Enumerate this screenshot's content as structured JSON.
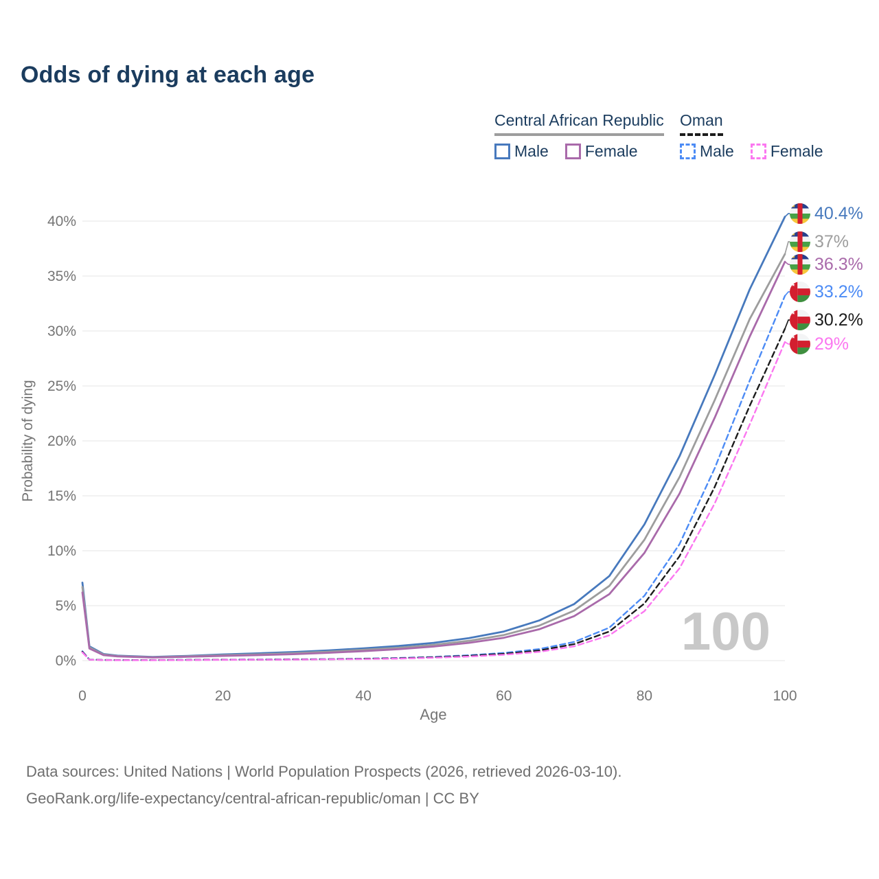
{
  "title": "Odds of dying at each age",
  "legend": {
    "groups": [
      {
        "name": "Central African Republic",
        "line_style": "solid",
        "line_color": "#9d9d9d",
        "items": [
          {
            "label": "Male",
            "color": "#4779bd",
            "style": "solid"
          },
          {
            "label": "Female",
            "color": "#a96aaa",
            "style": "solid"
          }
        ]
      },
      {
        "name": "Oman",
        "line_style": "dashed",
        "line_color": "#1c1c1c",
        "items": [
          {
            "label": "Male",
            "color": "#4c8bf5",
            "style": "dashed"
          },
          {
            "label": "Female",
            "color": "#fb77f0",
            "style": "dashed"
          }
        ]
      }
    ]
  },
  "watermark": "100",
  "footer": {
    "line1": "Data sources: United Nations | World Population Prospects (2026, retrieved 2026-03-10).",
    "line2": "GeoRank.org/life-expectancy/central-african-republic/oman | CC BY"
  },
  "chart_data": {
    "type": "line",
    "title": "Odds of dying at each age",
    "xlabel": "Age",
    "ylabel": "Probability of dying",
    "xlim": [
      0,
      100
    ],
    "ylim": [
      0,
      40.5
    ],
    "grid": true,
    "legend_position": "top-right",
    "x_ticks": [
      {
        "value": 0,
        "label": "0"
      },
      {
        "value": 20,
        "label": "20"
      },
      {
        "value": 40,
        "label": "40"
      },
      {
        "value": 60,
        "label": "60"
      },
      {
        "value": 80,
        "label": "80"
      },
      {
        "value": 100,
        "label": "100"
      }
    ],
    "y_ticks": [
      {
        "value": 0,
        "label": "0%"
      },
      {
        "value": 5,
        "label": "5%"
      },
      {
        "value": 10,
        "label": "10%"
      },
      {
        "value": 15,
        "label": "15%"
      },
      {
        "value": 20,
        "label": "20%"
      },
      {
        "value": 25,
        "label": "25%"
      },
      {
        "value": 30,
        "label": "30%"
      },
      {
        "value": 35,
        "label": "35%"
      },
      {
        "value": 40,
        "label": "40%"
      }
    ],
    "x": [
      0,
      1,
      3,
      5,
      10,
      15,
      20,
      25,
      30,
      35,
      40,
      45,
      50,
      55,
      60,
      65,
      70,
      75,
      80,
      85,
      90,
      95,
      100
    ],
    "series": [
      {
        "name": "Central African Republic Male",
        "country": "Central African Republic",
        "sex": "male",
        "line": "solid",
        "color": "#4779bd",
        "end_label": "40.4%",
        "end_value": 40.4,
        "flag": "central-african-republic",
        "values": [
          7.1,
          1.3,
          0.6,
          0.45,
          0.33,
          0.43,
          0.56,
          0.66,
          0.78,
          0.93,
          1.12,
          1.33,
          1.62,
          2.05,
          2.65,
          3.65,
          5.15,
          7.7,
          12.4,
          18.6,
          26.0,
          33.8,
          40.4
        ]
      },
      {
        "name": "Central African Republic Both sexes",
        "country": "Central African Republic",
        "sex": "both",
        "line": "solid",
        "color": "#9d9d9d",
        "end_label": "37%",
        "end_value": 37.0,
        "flag": "central-african-republic",
        "values": [
          6.7,
          1.2,
          0.55,
          0.41,
          0.3,
          0.39,
          0.49,
          0.57,
          0.68,
          0.81,
          0.98,
          1.17,
          1.44,
          1.8,
          2.33,
          3.18,
          4.55,
          6.8,
          11.0,
          16.7,
          23.7,
          31.1,
          37.0
        ]
      },
      {
        "name": "Central African Republic Female",
        "country": "Central African Republic",
        "sex": "female",
        "line": "solid",
        "color": "#a96aaa",
        "end_label": "36.3%",
        "end_value": 36.3,
        "flag": "central-african-republic",
        "values": [
          6.2,
          1.1,
          0.5,
          0.38,
          0.28,
          0.35,
          0.43,
          0.5,
          0.59,
          0.71,
          0.86,
          1.04,
          1.28,
          1.62,
          2.08,
          2.85,
          4.05,
          6.05,
          9.8,
          15.2,
          22.1,
          29.5,
          36.3
        ]
      },
      {
        "name": "Oman Male",
        "country": "Oman",
        "sex": "male",
        "line": "dashed",
        "color": "#4c8bf5",
        "end_label": "33.2%",
        "end_value": 33.2,
        "flag": "oman",
        "values": [
          0.85,
          0.1,
          0.06,
          0.05,
          0.05,
          0.07,
          0.09,
          0.1,
          0.12,
          0.14,
          0.18,
          0.24,
          0.34,
          0.49,
          0.7,
          1.05,
          1.7,
          3.0,
          5.9,
          10.6,
          17.5,
          25.5,
          33.2
        ]
      },
      {
        "name": "Oman Both sexes",
        "country": "Oman",
        "sex": "both",
        "line": "dashed",
        "color": "#1c1c1c",
        "end_label": "30.2%",
        "end_value": 30.2,
        "flag": "oman",
        "values": [
          0.8,
          0.09,
          0.055,
          0.045,
          0.045,
          0.06,
          0.08,
          0.09,
          0.105,
          0.125,
          0.16,
          0.21,
          0.3,
          0.43,
          0.62,
          0.92,
          1.5,
          2.65,
          5.2,
          9.5,
          15.8,
          23.2,
          30.2
        ]
      },
      {
        "name": "Oman Female",
        "country": "Oman",
        "sex": "female",
        "line": "dashed",
        "color": "#fb77f0",
        "end_label": "29%",
        "end_value": 29.0,
        "flag": "oman",
        "values": [
          0.75,
          0.08,
          0.05,
          0.04,
          0.04,
          0.05,
          0.07,
          0.08,
          0.09,
          0.11,
          0.14,
          0.18,
          0.26,
          0.37,
          0.54,
          0.8,
          1.3,
          2.3,
          4.5,
          8.4,
          14.3,
          21.5,
          29.0
        ]
      }
    ]
  }
}
